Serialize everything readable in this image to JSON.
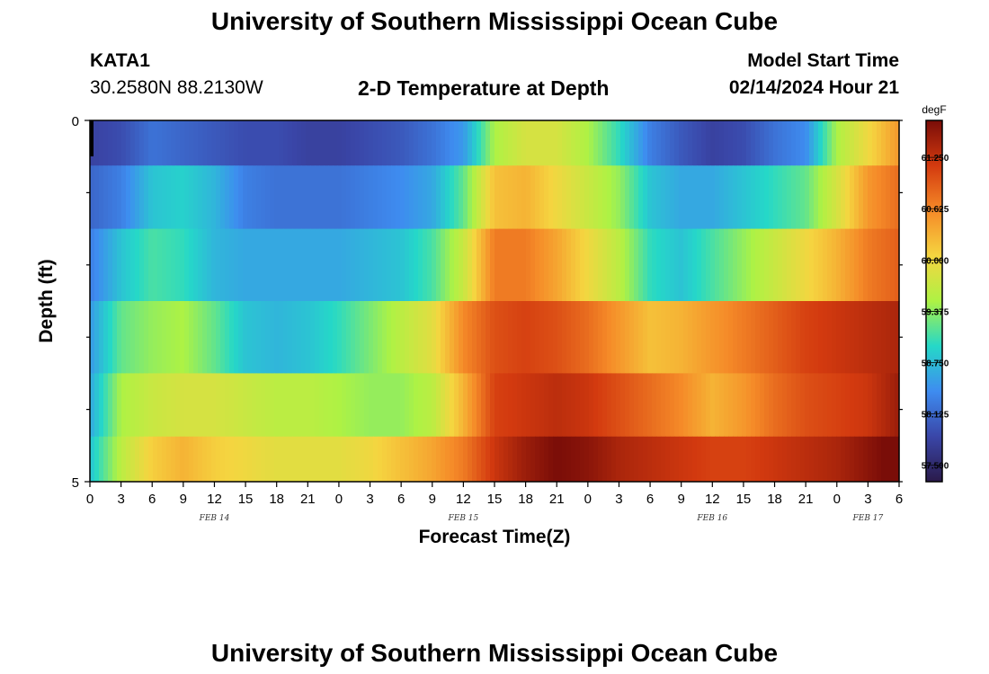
{
  "header": {
    "title": "University of Southern Mississippi Ocean Cube",
    "station": "KATA1",
    "coords": "30.2580N  88.2130W",
    "subtitle": "2-D Temperature at Depth",
    "model_start_label": "Model Start Time",
    "model_start_value": "02/14/2024 Hour 21"
  },
  "footer": {
    "title": "University of Southern Mississippi Ocean Cube"
  },
  "colors": {
    "palette": [
      "#2a1a4a",
      "#3a46a8",
      "#3e8cf0",
      "#25d8c8",
      "#aef244",
      "#f5d540",
      "#f58a28",
      "#d33a0f",
      "#7a0d08"
    ]
  },
  "chart_data": {
    "type": "heatmap",
    "title": "2-D Temperature at Depth",
    "xlabel": "Forecast Time(Z)",
    "ylabel": "Depth (ft)",
    "x_tick_labels": [
      "0",
      "3",
      "6",
      "9",
      "12",
      "15",
      "18",
      "21",
      "0",
      "3",
      "6",
      "9",
      "12",
      "15",
      "18",
      "21",
      "0",
      "3",
      "6",
      "9",
      "12",
      "15",
      "18",
      "21",
      "0",
      "3",
      "6"
    ],
    "x_range_hours": [
      0,
      78
    ],
    "date_labels": [
      {
        "label": "FEB 14",
        "hour": 12
      },
      {
        "label": "FEB 15",
        "hour": 36
      },
      {
        "label": "FEB 16",
        "hour": 60
      },
      {
        "label": "FEB 17",
        "hour": 75
      }
    ],
    "y_tick_labels": [
      "0",
      "5"
    ],
    "ylim_ft": [
      0,
      5
    ],
    "colorbar": {
      "unit": "degF",
      "min": 57.3,
      "max": 61.7,
      "tick_labels": [
        "57.500",
        "58.125",
        "58.750",
        "59.375",
        "60.000",
        "60.625",
        "61.250"
      ]
    },
    "row_depths_ft": [
      0.25,
      1,
      2,
      3,
      4,
      4.75
    ],
    "time_hours": [
      0,
      3,
      6,
      9,
      12,
      15,
      18,
      21,
      24,
      27,
      30,
      33,
      36,
      39,
      42,
      45,
      48,
      51,
      54,
      57,
      60,
      63,
      66,
      69,
      72,
      75,
      78
    ],
    "values_degF": [
      [
        57.8,
        57.9,
        58.2,
        58.1,
        58.0,
        57.9,
        57.9,
        57.8,
        57.8,
        57.9,
        58.0,
        58.2,
        58.5,
        59.5,
        59.8,
        59.8,
        59.5,
        59.0,
        58.3,
        58.0,
        57.8,
        57.9,
        58.2,
        58.4,
        59.5,
        60.0,
        60.5
      ],
      [
        58.1,
        58.3,
        58.8,
        58.9,
        58.7,
        58.3,
        58.2,
        58.2,
        58.2,
        58.3,
        58.4,
        58.6,
        59.2,
        60.2,
        60.3,
        60.0,
        59.7,
        59.4,
        58.8,
        58.6,
        58.6,
        58.8,
        59.0,
        59.2,
        59.8,
        60.5,
        60.8
      ],
      [
        58.3,
        58.8,
        59.1,
        59.0,
        58.7,
        58.6,
        58.6,
        58.6,
        58.6,
        58.7,
        58.8,
        59.1,
        59.7,
        60.7,
        60.7,
        60.4,
        60.0,
        59.6,
        59.0,
        58.8,
        59.1,
        59.4,
        59.7,
        60.0,
        60.3,
        60.7,
        60.9
      ],
      [
        58.5,
        59.2,
        59.4,
        59.5,
        59.2,
        58.8,
        58.7,
        58.8,
        59.0,
        59.3,
        59.6,
        59.9,
        60.6,
        61.0,
        61.1,
        61.0,
        60.8,
        60.5,
        60.2,
        60.3,
        60.5,
        60.7,
        60.9,
        61.1,
        61.2,
        61.3,
        61.4
      ],
      [
        58.6,
        59.5,
        59.7,
        59.8,
        59.8,
        59.7,
        59.6,
        59.6,
        59.5,
        59.4,
        59.4,
        59.6,
        60.3,
        61.1,
        61.2,
        61.3,
        61.2,
        61.0,
        60.8,
        60.6,
        60.3,
        60.5,
        60.8,
        61.0,
        61.1,
        61.2,
        61.5
      ],
      [
        58.8,
        59.6,
        60.1,
        60.3,
        60.1,
        60.0,
        59.9,
        59.9,
        59.9,
        60.0,
        60.2,
        60.4,
        60.7,
        61.2,
        61.5,
        61.7,
        61.6,
        61.4,
        61.3,
        61.2,
        61.1,
        61.1,
        61.2,
        61.3,
        61.4,
        61.6,
        61.8
      ]
    ]
  }
}
